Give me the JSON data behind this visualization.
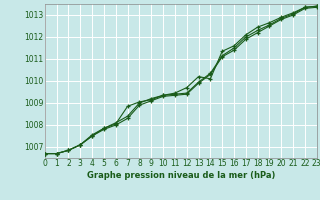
{
  "title": "Graphe pression niveau de la mer (hPa)",
  "bg_color": "#c8e8e8",
  "grid_color": "#ffffff",
  "line_color": "#1a5c1a",
  "tick_color": "#1a5c1a",
  "border_color": "#888888",
  "xlim": [
    0,
    23
  ],
  "ylim": [
    1006.5,
    1013.5
  ],
  "yticks": [
    1007,
    1008,
    1009,
    1010,
    1011,
    1012,
    1013
  ],
  "xticks": [
    0,
    1,
    2,
    3,
    4,
    5,
    6,
    7,
    8,
    9,
    10,
    11,
    12,
    13,
    14,
    15,
    16,
    17,
    18,
    19,
    20,
    21,
    22,
    23
  ],
  "series": [
    [
      1006.7,
      1006.7,
      1006.85,
      1007.1,
      1007.5,
      1007.8,
      1008.0,
      1008.3,
      1008.9,
      1009.1,
      1009.3,
      1009.35,
      1009.4,
      1009.9,
      1010.3,
      1011.1,
      1011.4,
      1011.9,
      1012.2,
      1012.5,
      1012.8,
      1013.0,
      1013.3,
      1013.35
    ],
    [
      1006.7,
      1006.7,
      1006.85,
      1007.1,
      1007.55,
      1007.85,
      1008.1,
      1008.4,
      1009.0,
      1009.2,
      1009.35,
      1009.4,
      1009.45,
      1009.95,
      1010.35,
      1011.15,
      1011.5,
      1012.0,
      1012.3,
      1012.55,
      1012.85,
      1013.05,
      1013.35,
      1013.4
    ],
    [
      1006.7,
      1006.7,
      1006.85,
      1007.1,
      1007.5,
      1007.85,
      1008.05,
      1008.85,
      1009.05,
      1009.15,
      1009.35,
      1009.45,
      1009.7,
      1010.2,
      1010.1,
      1011.35,
      1011.6,
      1012.1,
      1012.45,
      1012.65,
      1012.9,
      1013.1,
      1013.35,
      1013.4
    ]
  ]
}
